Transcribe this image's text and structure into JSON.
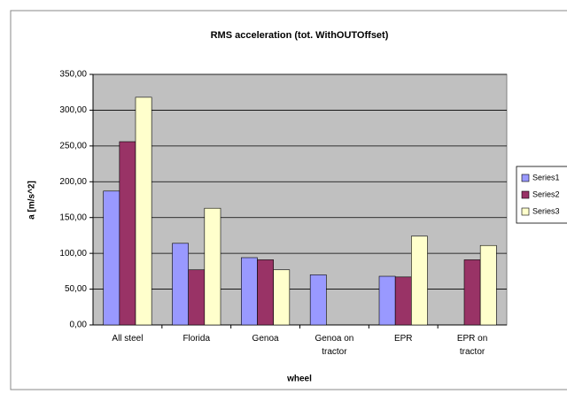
{
  "chart_data": {
    "type": "bar",
    "title": "RMS acceleration (tot. WithOUTOffset)",
    "x_label": "wheel",
    "y_label": "a [m/s^2]",
    "categories": [
      "All steel",
      "Florida",
      "Genoa",
      "Genoa on tractor",
      "EPR",
      "EPR on tractor"
    ],
    "series": [
      {
        "name": "Series1",
        "color": "#9999ff",
        "values": [
          187,
          114,
          94,
          70,
          68,
          null
        ]
      },
      {
        "name": "Series2",
        "color": "#993366",
        "values": [
          256,
          77,
          91,
          null,
          67,
          91
        ]
      },
      {
        "name": "Series3",
        "color": "#ffffcc",
        "values": [
          318,
          163,
          77,
          null,
          124,
          111
        ]
      }
    ],
    "ylim": [
      0,
      350
    ],
    "yticks": [
      {
        "value": 0,
        "label": "0,00"
      },
      {
        "value": 50,
        "label": "50,00"
      },
      {
        "value": 100,
        "label": "100,00"
      },
      {
        "value": 150,
        "label": "150,00"
      },
      {
        "value": 200,
        "label": "200,00"
      },
      {
        "value": 250,
        "label": "250,00"
      },
      {
        "value": 300,
        "label": "300,00"
      },
      {
        "value": 350,
        "label": "350,00"
      }
    ],
    "grid": true,
    "legend": "right"
  }
}
